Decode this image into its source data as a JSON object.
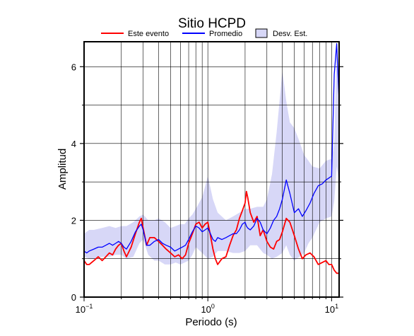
{
  "chart_data": {
    "type": "line",
    "title": "Sitio HCPD",
    "xlabel": "Periodo (s)",
    "ylabel": "Amplitud",
    "xscale": "log",
    "xlim": [
      0.1,
      11.5
    ],
    "ylim": [
      0,
      6.65
    ],
    "grid": true,
    "legend_position": "top",
    "x_ticks": [
      {
        "value": 0.1,
        "base": "10",
        "exp": "−1"
      },
      {
        "value": 1,
        "base": "10",
        "exp": "0"
      },
      {
        "value": 10,
        "base": "10",
        "exp": "1"
      }
    ],
    "y_ticks": [
      0,
      2,
      4,
      6
    ],
    "legend": [
      {
        "label": "Este evento",
        "kind": "line",
        "color": "#ff0000"
      },
      {
        "label": "Promedio",
        "kind": "line",
        "color": "#0000ff"
      },
      {
        "label": "Desv. Est.",
        "kind": "band",
        "color": "#d7d7f7"
      }
    ],
    "series": [
      {
        "name": "Este evento",
        "color": "#ff0000",
        "x": [
          0.1,
          0.105,
          0.11,
          0.12,
          0.13,
          0.14,
          0.15,
          0.16,
          0.17,
          0.18,
          0.19,
          0.2,
          0.21,
          0.22,
          0.24,
          0.26,
          0.28,
          0.29,
          0.3,
          0.32,
          0.34,
          0.37,
          0.4,
          0.43,
          0.46,
          0.5,
          0.54,
          0.58,
          0.62,
          0.66,
          0.7,
          0.75,
          0.8,
          0.85,
          0.9,
          0.95,
          1.0,
          1.05,
          1.1,
          1.15,
          1.2,
          1.3,
          1.4,
          1.5,
          1.6,
          1.7,
          1.8,
          1.9,
          2.0,
          2.05,
          2.1,
          2.2,
          2.35,
          2.5,
          2.65,
          2.8,
          3.0,
          3.2,
          3.4,
          3.6,
          3.8,
          4.0,
          4.3,
          4.6,
          5.0,
          5.4,
          5.8,
          6.2,
          6.7,
          7.2,
          7.8,
          8.4,
          9.0,
          9.5,
          10.0,
          10.5,
          11.0,
          11.5
        ],
        "y": [
          0.95,
          0.85,
          0.85,
          0.95,
          1.05,
          0.95,
          1.05,
          1.15,
          1.1,
          1.25,
          1.35,
          1.4,
          1.2,
          1.05,
          1.3,
          1.65,
          1.95,
          2.05,
          1.8,
          1.35,
          1.55,
          1.55,
          1.45,
          1.35,
          1.25,
          1.15,
          1.05,
          1.1,
          1.0,
          1.1,
          1.4,
          1.65,
          1.9,
          1.95,
          1.8,
          1.9,
          1.95,
          1.6,
          1.25,
          1.0,
          0.85,
          1.0,
          1.05,
          1.35,
          1.6,
          1.75,
          2.05,
          2.25,
          2.45,
          2.75,
          2.6,
          2.2,
          1.95,
          2.1,
          1.6,
          1.75,
          1.45,
          1.3,
          1.25,
          1.45,
          1.5,
          1.7,
          2.05,
          1.95,
          1.6,
          1.25,
          1.0,
          1.1,
          1.15,
          1.05,
          0.85,
          0.9,
          0.95,
          0.85,
          0.85,
          0.7,
          0.62,
          0.62
        ]
      },
      {
        "name": "Promedio",
        "color": "#0000ff",
        "x": [
          0.1,
          0.105,
          0.11,
          0.12,
          0.13,
          0.14,
          0.15,
          0.16,
          0.17,
          0.18,
          0.19,
          0.2,
          0.21,
          0.22,
          0.24,
          0.26,
          0.28,
          0.29,
          0.3,
          0.32,
          0.34,
          0.37,
          0.4,
          0.43,
          0.46,
          0.5,
          0.54,
          0.58,
          0.62,
          0.66,
          0.7,
          0.75,
          0.8,
          0.85,
          0.9,
          0.95,
          1.0,
          1.05,
          1.1,
          1.15,
          1.2,
          1.3,
          1.4,
          1.5,
          1.6,
          1.7,
          1.8,
          1.9,
          2.0,
          2.05,
          2.1,
          2.2,
          2.35,
          2.5,
          2.65,
          2.8,
          3.0,
          3.2,
          3.4,
          3.6,
          3.8,
          4.0,
          4.3,
          4.6,
          5.0,
          5.4,
          5.8,
          6.2,
          6.7,
          7.2,
          7.8,
          8.4,
          9.0,
          9.5,
          10.0,
          10.5,
          11.0,
          11.5
        ],
        "y": [
          1.2,
          1.15,
          1.2,
          1.25,
          1.3,
          1.3,
          1.35,
          1.4,
          1.35,
          1.4,
          1.45,
          1.4,
          1.3,
          1.25,
          1.45,
          1.7,
          1.85,
          1.9,
          1.75,
          1.35,
          1.35,
          1.45,
          1.5,
          1.4,
          1.35,
          1.3,
          1.2,
          1.25,
          1.3,
          1.35,
          1.5,
          1.7,
          1.85,
          1.8,
          1.7,
          1.75,
          1.8,
          1.65,
          1.5,
          1.45,
          1.55,
          1.5,
          1.55,
          1.6,
          1.65,
          1.65,
          1.75,
          1.9,
          1.95,
          1.85,
          1.8,
          1.75,
          1.85,
          2.05,
          1.95,
          1.75,
          1.65,
          1.8,
          2.0,
          2.1,
          2.3,
          2.55,
          3.05,
          2.7,
          2.2,
          2.3,
          2.1,
          2.25,
          2.45,
          2.7,
          2.9,
          2.95,
          3.05,
          3.1,
          3.15,
          5.8,
          6.6,
          5.1
        ]
      }
    ],
    "band": {
      "name": "Desv. Est.",
      "color": "#d7d7f7",
      "x": [
        0.1,
        0.11,
        0.12,
        0.14,
        0.16,
        0.18,
        0.2,
        0.22,
        0.25,
        0.28,
        0.3,
        0.33,
        0.37,
        0.4,
        0.45,
        0.5,
        0.55,
        0.6,
        0.65,
        0.7,
        0.75,
        0.8,
        0.9,
        1.0,
        1.1,
        1.2,
        1.4,
        1.6,
        1.8,
        2.0,
        2.2,
        2.5,
        2.8,
        3.0,
        3.3,
        3.6,
        4.0,
        4.3,
        4.6,
        5.0,
        5.5,
        6.0,
        6.5,
        7.0,
        8.0,
        9.0,
        10.0,
        10.5,
        11.0,
        11.5
      ],
      "upper": [
        1.65,
        1.75,
        1.75,
        1.8,
        1.85,
        1.8,
        1.85,
        1.85,
        1.95,
        2.1,
        2.15,
        2.0,
        2.0,
        2.05,
        1.95,
        1.8,
        1.85,
        1.9,
        1.9,
        2.05,
        2.15,
        2.3,
        2.6,
        3.15,
        2.55,
        2.2,
        2.0,
        2.1,
        2.2,
        2.3,
        2.3,
        2.35,
        2.35,
        2.55,
        3.2,
        4.3,
        5.9,
        5.1,
        4.55,
        4.4,
        4.05,
        3.7,
        3.55,
        3.4,
        3.35,
        3.55,
        3.6,
        4.0,
        6.65,
        5.6
      ],
      "lower": [
        1.05,
        1.0,
        1.0,
        1.05,
        1.05,
        1.1,
        1.1,
        1.0,
        1.05,
        1.4,
        1.5,
        1.1,
        0.95,
        0.95,
        0.85,
        0.85,
        0.9,
        0.85,
        0.9,
        0.95,
        1.1,
        1.3,
        1.15,
        1.0,
        1.05,
        1.2,
        1.2,
        1.15,
        1.15,
        1.2,
        1.35,
        1.35,
        1.15,
        1.1,
        1.0,
        1.05,
        1.15,
        1.35,
        1.1,
        0.95,
        1.05,
        1.15,
        1.4,
        1.55,
        1.95,
        2.05,
        2.1,
        2.5,
        3.4,
        3.0
      ]
    }
  }
}
